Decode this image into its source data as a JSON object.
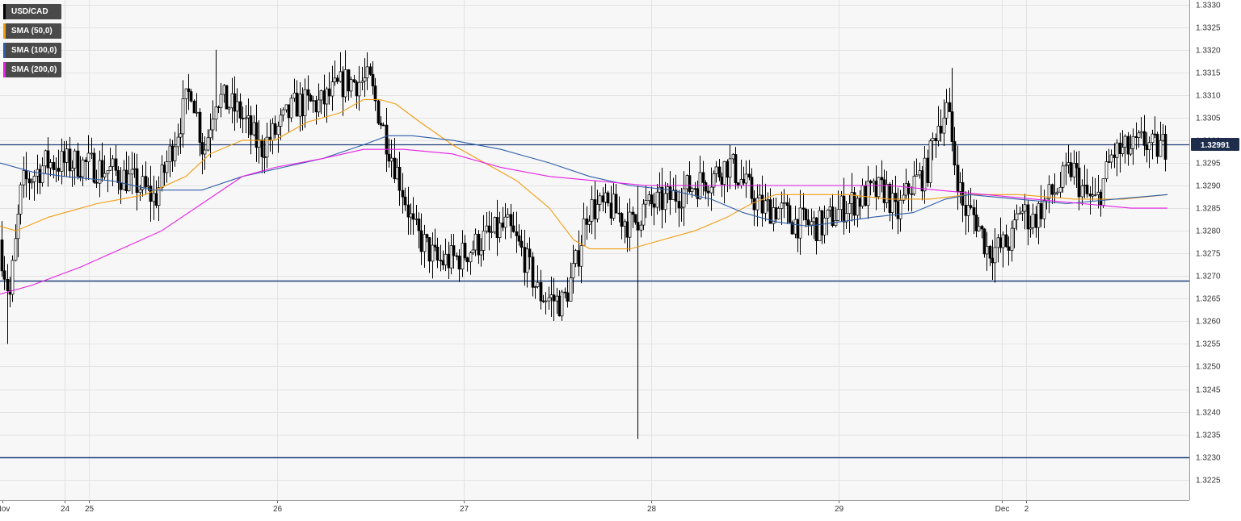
{
  "chart_data": {
    "type": "candlestick",
    "instrument": "USD/CAD",
    "ylim": [
      1.32205,
      1.3331
    ],
    "yticks": [
      "1.3330",
      "1.3325",
      "1.3320",
      "1.3315",
      "1.3310",
      "1.3305",
      "1.3300",
      "1.3295",
      "1.3290",
      "1.3285",
      "1.3280",
      "1.3275",
      "1.3270",
      "1.3265",
      "1.3260",
      "1.3255",
      "1.3250",
      "1.3245",
      "1.3240",
      "1.3235",
      "1.3230",
      "1.3225"
    ],
    "xticks": [
      "Nov",
      "24",
      "25",
      "26",
      "27",
      "28",
      "29",
      "Dec",
      "2"
    ],
    "last_price": "1.32991",
    "horizontal_levels": [
      1.32991,
      1.3269,
      1.323
    ],
    "grid": true,
    "legend_position": "top-left",
    "colors": {
      "up": "#ffffff",
      "down": "#000000",
      "level": "#1f3f7a",
      "sma50": "#f39c12",
      "sma100": "#2e5ea8",
      "sma200": "#e61ee6",
      "price_tag": "#1f2d4d"
    },
    "series": [
      {
        "name": "USD/CAD",
        "type": "candlestick",
        "x": [
          "Nov 23 21:00",
          "Nov 24 12:00",
          "Nov 25 12:00",
          "Nov 26 12:00",
          "Nov 27 12:00",
          "Nov 28 12:00",
          "Nov 29 12:00",
          "Dec 2 12:00",
          "Dec 2 21:00"
        ],
        "close": [
          1.3283,
          1.3292,
          1.3293,
          1.3303,
          1.3275,
          1.3283,
          1.3283,
          1.3285,
          1.3299
        ]
      },
      {
        "name": "SMA (50,0)",
        "type": "line",
        "x": [
          "Nov 24",
          "Nov 25",
          "Nov 26",
          "Nov 27",
          "Nov 28",
          "Nov 29",
          "Dec 2"
        ],
        "values": [
          1.3281,
          1.3288,
          1.33,
          1.3285,
          1.3278,
          1.3288,
          1.3288
        ]
      },
      {
        "name": "SMA (100,0)",
        "type": "line",
        "x": [
          "Nov 24",
          "Nov 25",
          "Nov 26",
          "Nov 27",
          "Nov 28",
          "Nov 29",
          "Dec 2"
        ],
        "values": [
          1.3295,
          1.329,
          1.3296,
          1.3298,
          1.3288,
          1.3282,
          1.3288
        ]
      },
      {
        "name": "SMA (200,0)",
        "type": "line",
        "x": [
          "Nov 24",
          "Nov 25",
          "Nov 26",
          "Nov 27",
          "Nov 28",
          "Nov 29",
          "Dec 2"
        ],
        "values": [
          1.3266,
          1.3283,
          1.3298,
          1.3293,
          1.329,
          1.329,
          1.3285
        ]
      }
    ]
  },
  "legend": [
    {
      "label": "USD/CAD",
      "color": "#000000"
    },
    {
      "label": "SMA (50,0)",
      "color": "#f39c12"
    },
    {
      "label": "SMA (100,0)",
      "color": "#2e5ea8"
    },
    {
      "label": "SMA (200,0)",
      "color": "#e61ee6"
    }
  ]
}
